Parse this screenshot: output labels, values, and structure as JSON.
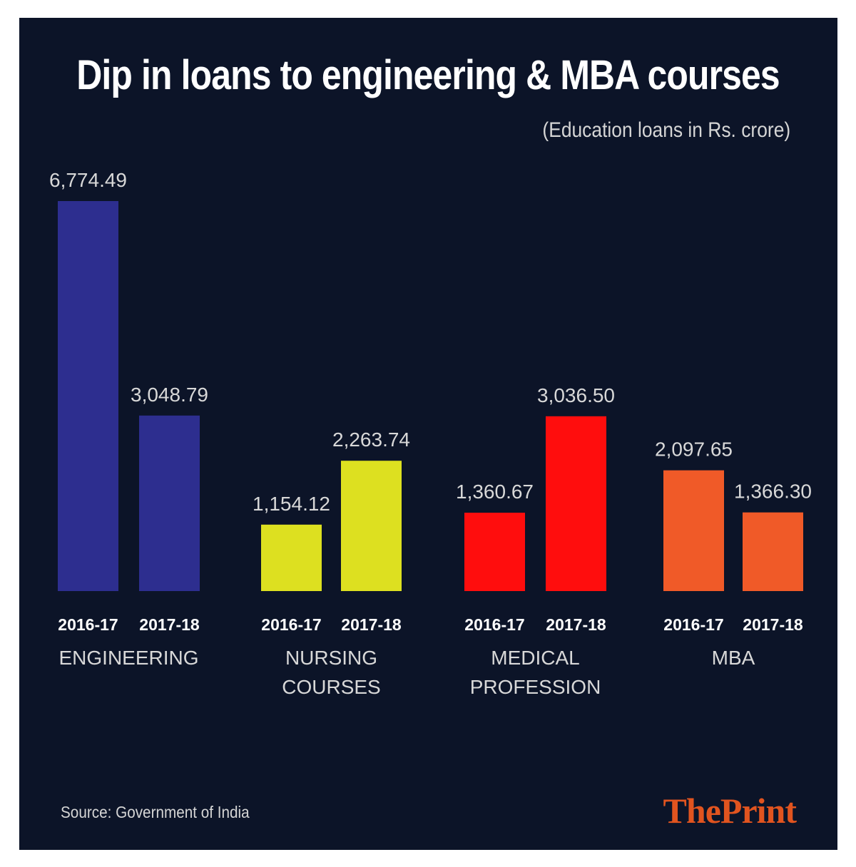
{
  "title": "Dip in loans to engineering & MBA courses",
  "subtitle": "(Education loans in Rs. crore)",
  "source": "Source: Government of India",
  "logo": {
    "the": "The",
    "print": "Print"
  },
  "colors": {
    "background": "#0c1428",
    "engineering": "#2d2e8f",
    "nursing": "#dde020",
    "medical": "#ff0d0d",
    "mba": "#f05a28"
  },
  "chart_data": {
    "type": "bar",
    "title": "Dip in loans to engineering & MBA courses",
    "subtitle": "(Education loans in Rs. crore)",
    "grid": false,
    "groups": [
      {
        "name": [
          "ENGINEERING"
        ],
        "color": "#2d2e8f",
        "bars": [
          {
            "year": "2016-17",
            "value": 6774.49,
            "label": "6,774.49"
          },
          {
            "year": "2017-18",
            "value": 3048.79,
            "label": "3,048.79"
          }
        ]
      },
      {
        "name": [
          "NURSING",
          "COURSES"
        ],
        "color": "#dde020",
        "bars": [
          {
            "year": "2016-17",
            "value": 1154.12,
            "label": "1,154.12"
          },
          {
            "year": "2017-18",
            "value": 2263.74,
            "label": "2,263.74"
          }
        ]
      },
      {
        "name": [
          "MEDICAL",
          "PROFESSION"
        ],
        "color": "#ff0d0d",
        "bars": [
          {
            "year": "2016-17",
            "value": 1360.67,
            "label": "1,360.67"
          },
          {
            "year": "2017-18",
            "value": 3036.5,
            "label": "3,036.50"
          }
        ]
      },
      {
        "name": [
          "MBA"
        ],
        "color": "#f05a28",
        "bars": [
          {
            "year": "2016-17",
            "value": 2097.65,
            "label": "2,097.65"
          },
          {
            "year": "2017-18",
            "value": 1366.3,
            "label": "1,366.30"
          }
        ]
      }
    ]
  }
}
